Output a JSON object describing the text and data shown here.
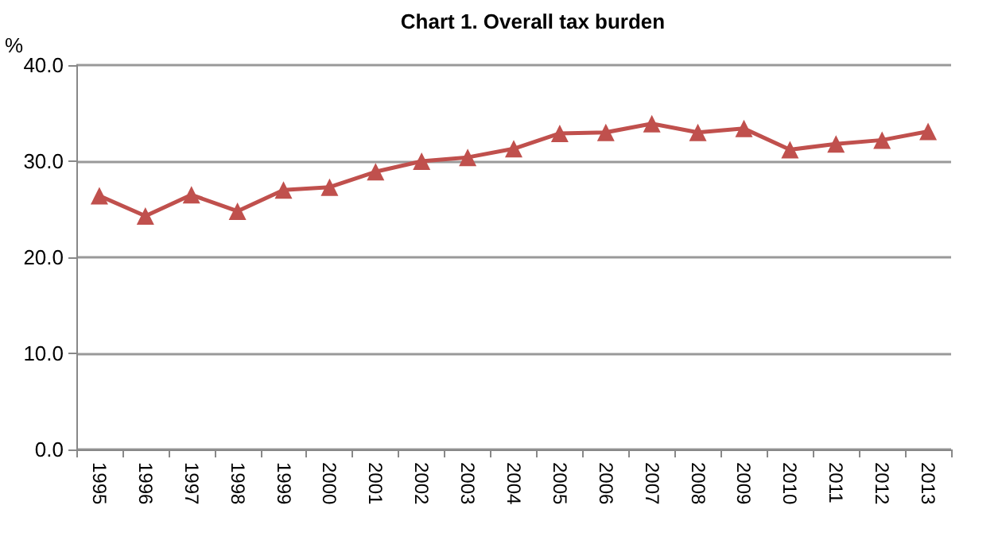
{
  "chart_data": {
    "type": "line",
    "title": "Chart 1. Overall tax burden",
    "ylabel": "%",
    "categories": [
      "1995",
      "1996",
      "1997",
      "1998",
      "1999",
      "2000",
      "2001",
      "2002",
      "2003",
      "2004",
      "2005",
      "2006",
      "2007",
      "2008",
      "2009",
      "2010",
      "2011",
      "2012",
      "2013"
    ],
    "series": [
      {
        "color": "#c0504d",
        "values": [
          26.4,
          24.3,
          26.5,
          24.8,
          27.0,
          27.3,
          28.9,
          30.0,
          30.4,
          31.3,
          32.9,
          33.0,
          33.9,
          33.0,
          33.4,
          31.2,
          31.8,
          32.2,
          33.1
        ]
      }
    ],
    "ylim": [
      0,
      40
    ],
    "yticks": [
      {
        "value": 0,
        "label": "0.0"
      },
      {
        "value": 10,
        "label": "10.0"
      },
      {
        "value": 20,
        "label": "20.0"
      },
      {
        "value": 30,
        "label": "30.0"
      },
      {
        "value": 40,
        "label": "40.0"
      }
    ],
    "grid": "y",
    "marker": "triangle",
    "line_style": "solid"
  }
}
